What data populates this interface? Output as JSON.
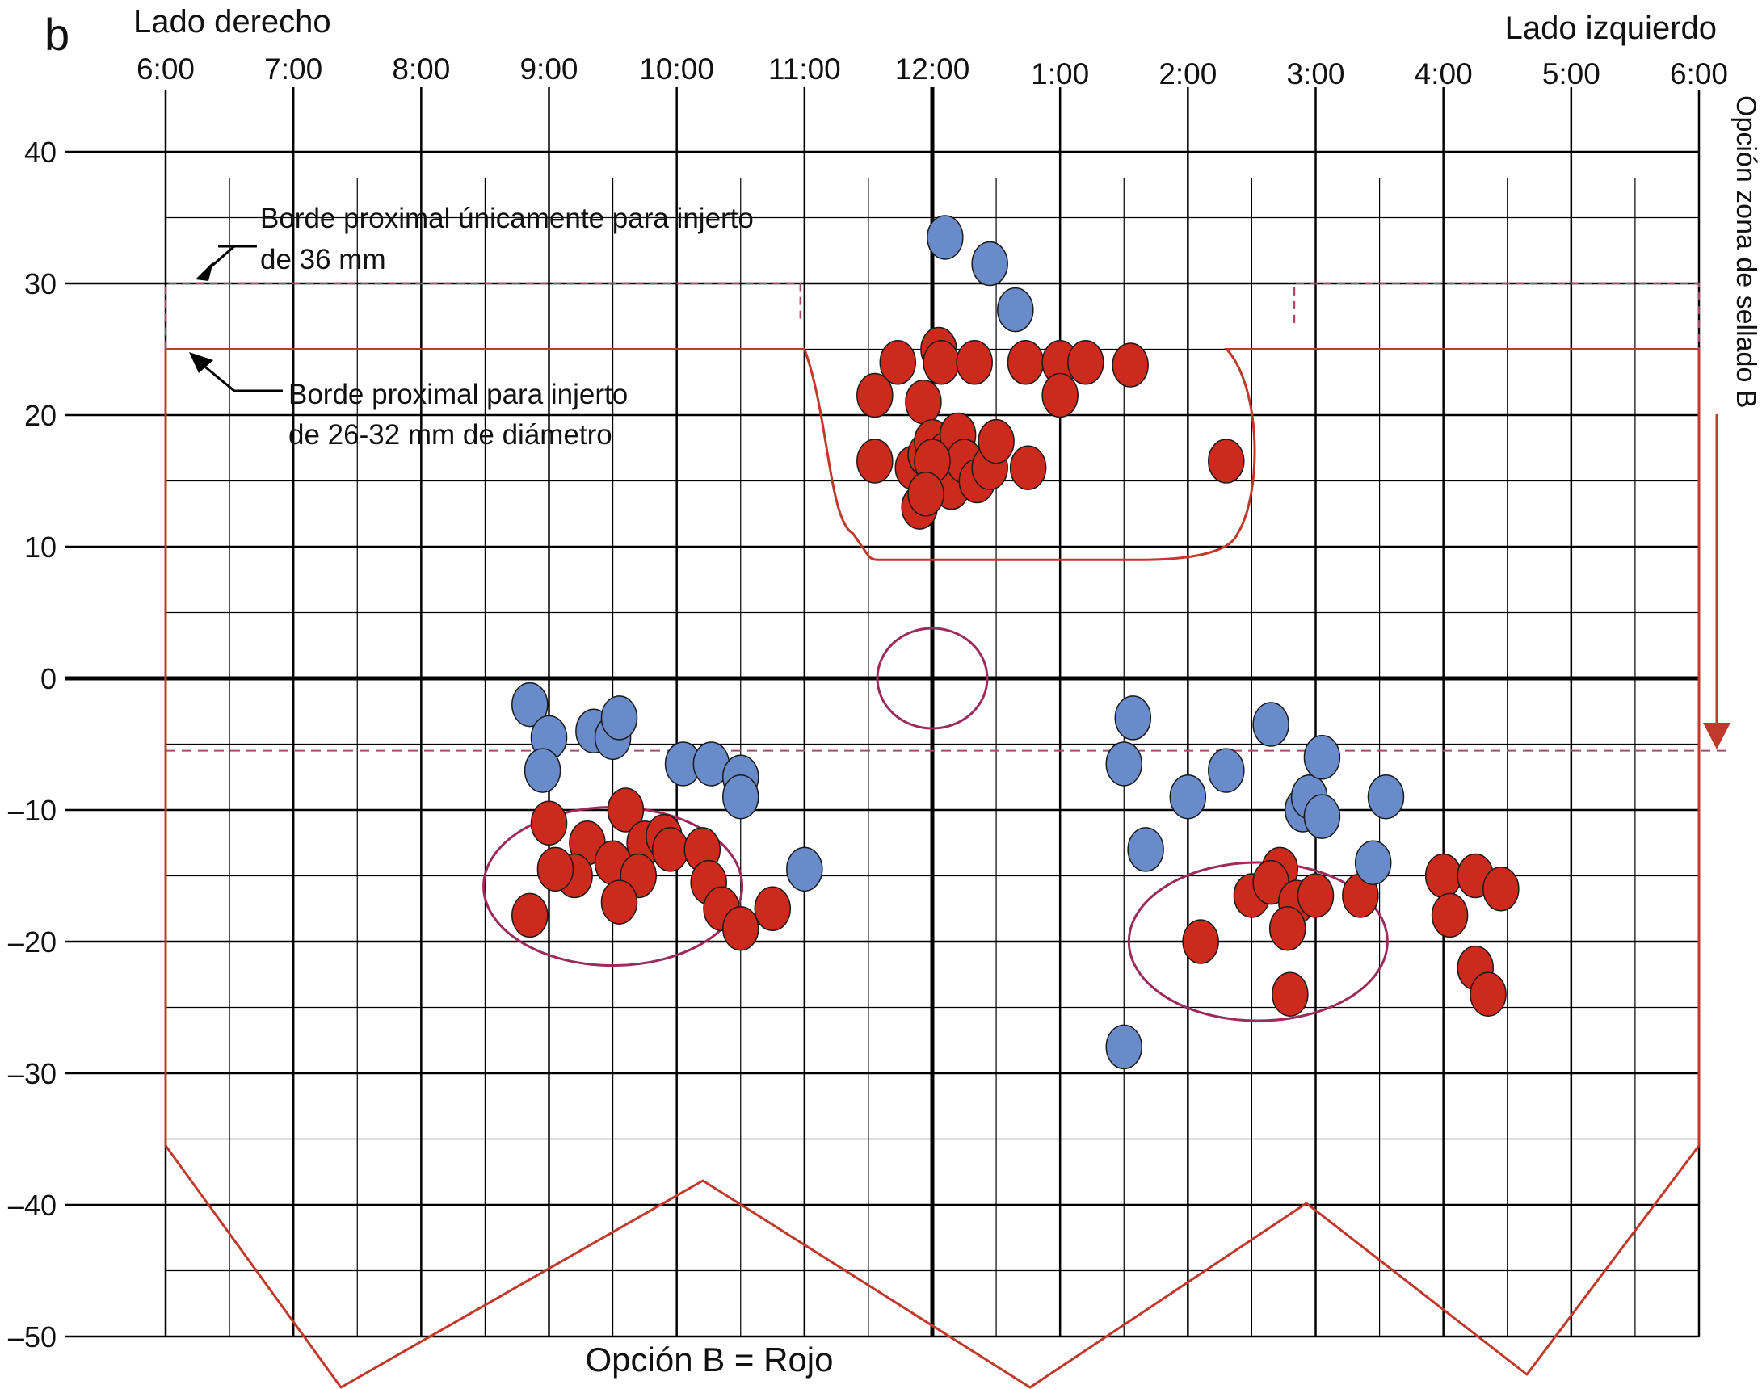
{
  "panel_label": "b",
  "side_right_label": "Lado derecho",
  "side_left_label": "Lado izquierdo",
  "annotations": {
    "border_36_line1": "Borde proximal únicamente para injerto",
    "border_36_line2": "de 36 mm",
    "border_26_line1": "Borde proximal para injerto",
    "border_26_line2": "de 26-32 mm de diámetro",
    "seal_zone": "Opción zona de sellado B",
    "option_b": "Opción B = Rojo"
  },
  "colors": {
    "grid": "#000000",
    "red_point": "#cc2a1c",
    "blue_point": "#6a8bc9",
    "point_outline": "#1a1a1a",
    "zone_line": "#c0392b",
    "dashed_line": "#a24a6a",
    "cluster_ellipse": "#9c2a5a",
    "label_seal": "#9c2a5a",
    "label_option": "#c0392b"
  },
  "chart_data": {
    "type": "scatter",
    "x_ticks": [
      "6:00",
      "7:00",
      "8:00",
      "9:00",
      "10:00",
      "11:00",
      "12:00",
      "1:00",
      "2:00",
      "3:00",
      "4:00",
      "5:00",
      "6:00"
    ],
    "y_ticks": [
      "40",
      "30",
      "20",
      "10",
      "0",
      "–10",
      "–20",
      "–30",
      "–40",
      "–50"
    ],
    "xlim": [
      0,
      12
    ],
    "ylim": [
      -50,
      40
    ],
    "series": [
      {
        "color": "red",
        "points": [
          [
            5.73,
            24
          ],
          [
            5.93,
            21
          ],
          [
            6.05,
            25
          ],
          [
            6.07,
            24
          ],
          [
            6.33,
            24
          ],
          [
            6.73,
            24
          ],
          [
            7.0,
            24
          ],
          [
            7.2,
            24
          ],
          [
            7.55,
            23.8
          ],
          [
            7.0,
            21.5
          ],
          [
            5.55,
            21.5
          ],
          [
            5.55,
            16.5
          ],
          [
            5.85,
            16
          ],
          [
            5.95,
            17
          ],
          [
            6.0,
            18
          ],
          [
            6.05,
            15
          ],
          [
            6.1,
            17
          ],
          [
            6.15,
            14.5
          ],
          [
            6.2,
            18.5
          ],
          [
            6.25,
            16.5
          ],
          [
            6.35,
            15
          ],
          [
            6.45,
            16
          ],
          [
            6.5,
            18
          ],
          [
            6.75,
            16
          ],
          [
            6.0,
            16.5
          ],
          [
            5.9,
            13
          ],
          [
            5.95,
            14
          ],
          [
            8.3,
            16.5
          ],
          [
            3.0,
            -11
          ],
          [
            3.3,
            -12.5
          ],
          [
            3.6,
            -10
          ],
          [
            3.75,
            -12.5
          ],
          [
            3.9,
            -12
          ],
          [
            3.5,
            -14
          ],
          [
            3.2,
            -15
          ],
          [
            3.05,
            -14.5
          ],
          [
            3.7,
            -15
          ],
          [
            3.95,
            -13
          ],
          [
            4.2,
            -13
          ],
          [
            4.25,
            -15.5
          ],
          [
            4.35,
            -17.5
          ],
          [
            4.5,
            -19
          ],
          [
            4.75,
            -17.5
          ],
          [
            3.55,
            -17
          ],
          [
            2.85,
            -18
          ],
          [
            8.72,
            -14.5
          ],
          [
            8.5,
            -16.5
          ],
          [
            8.65,
            -15.5
          ],
          [
            8.85,
            -17
          ],
          [
            9.0,
            -16.5
          ],
          [
            9.35,
            -16.5
          ],
          [
            8.78,
            -19
          ],
          [
            8.1,
            -20
          ],
          [
            8.8,
            -24
          ],
          [
            10.0,
            -15
          ],
          [
            10.25,
            -15
          ],
          [
            10.05,
            -18
          ],
          [
            10.45,
            -16
          ],
          [
            10.25,
            -22
          ],
          [
            10.35,
            -24
          ]
        ]
      },
      {
        "color": "blue",
        "points": [
          [
            6.1,
            33.5
          ],
          [
            6.45,
            31.5
          ],
          [
            6.65,
            28
          ],
          [
            2.85,
            -2
          ],
          [
            3.0,
            -4.5
          ],
          [
            2.95,
            -7
          ],
          [
            3.35,
            -4
          ],
          [
            3.5,
            -4.5
          ],
          [
            3.55,
            -3
          ],
          [
            4.05,
            -6.5
          ],
          [
            4.27,
            -6.5
          ],
          [
            4.5,
            -7.5
          ],
          [
            4.5,
            -9
          ],
          [
            5.0,
            -14.5
          ],
          [
            7.57,
            -3
          ],
          [
            7.5,
            -6.5
          ],
          [
            7.67,
            -13
          ],
          [
            8.0,
            -9
          ],
          [
            8.3,
            -7
          ],
          [
            8.65,
            -3.5
          ],
          [
            8.9,
            -10
          ],
          [
            8.95,
            -9
          ],
          [
            9.05,
            -6
          ],
          [
            9.05,
            -10.5
          ],
          [
            9.55,
            -9
          ],
          [
            9.45,
            -14
          ],
          [
            7.5,
            -28
          ]
        ]
      }
    ]
  }
}
